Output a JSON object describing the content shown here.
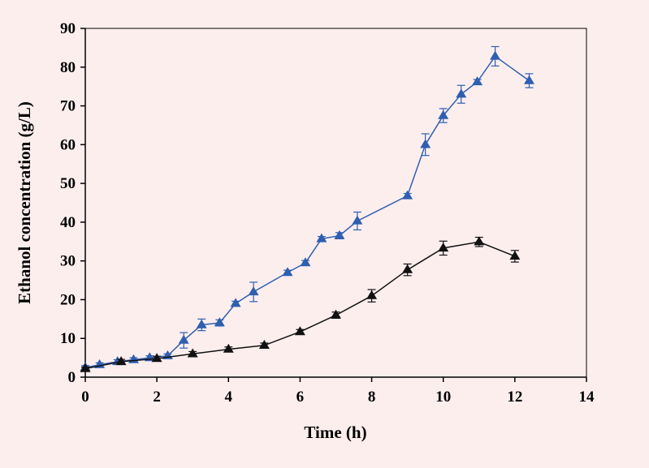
{
  "chart_data": {
    "type": "line",
    "title": "",
    "xlabel": "Time (h)",
    "ylabel": "Ethanol  concentration (g/L)",
    "xlim": [
      0,
      14
    ],
    "ylim": [
      0,
      90
    ],
    "x_ticks": [
      "0",
      "2",
      "4",
      "6",
      "8",
      "10",
      "12",
      "14"
    ],
    "y_ticks": [
      "0",
      "10",
      "20",
      "30",
      "40",
      "50",
      "60",
      "70",
      "80",
      "90"
    ],
    "grid": false,
    "legend": "none",
    "series": [
      {
        "name": "blue",
        "color": "#2e5fb0",
        "marker": "triangle",
        "points": [
          {
            "x": 0,
            "y": 2.5,
            "err": 0.5
          },
          {
            "x": 0.4,
            "y": 3.2,
            "err": 0.5
          },
          {
            "x": 0.9,
            "y": 4.0,
            "err": 0.5
          },
          {
            "x": 1.35,
            "y": 4.5,
            "err": 0.5
          },
          {
            "x": 1.8,
            "y": 5.0,
            "err": 0.5
          },
          {
            "x": 2.3,
            "y": 5.5,
            "err": 0.5
          },
          {
            "x": 2.75,
            "y": 9.5,
            "err": 2.0
          },
          {
            "x": 3.25,
            "y": 13.5,
            "err": 1.5
          },
          {
            "x": 3.75,
            "y": 14.0,
            "err": 0.8
          },
          {
            "x": 4.2,
            "y": 19.0,
            "err": 0.6
          },
          {
            "x": 4.7,
            "y": 22.0,
            "err": 2.5
          },
          {
            "x": 5.65,
            "y": 27.0,
            "err": 0.6
          },
          {
            "x": 6.15,
            "y": 29.5,
            "err": 0.6
          },
          {
            "x": 6.6,
            "y": 35.7,
            "err": 0.6
          },
          {
            "x": 7.1,
            "y": 36.5,
            "err": 0.8
          },
          {
            "x": 7.6,
            "y": 40.3,
            "err": 2.3
          },
          {
            "x": 9.0,
            "y": 46.8,
            "err": 0.6
          },
          {
            "x": 9.5,
            "y": 60.0,
            "err": 2.8
          },
          {
            "x": 10.0,
            "y": 67.5,
            "err": 1.8
          },
          {
            "x": 10.5,
            "y": 73.0,
            "err": 2.3
          },
          {
            "x": 10.95,
            "y": 76.2,
            "err": 0.6
          },
          {
            "x": 11.45,
            "y": 82.8,
            "err": 2.5
          },
          {
            "x": 12.4,
            "y": 76.5,
            "err": 1.8
          }
        ]
      },
      {
        "name": "black",
        "color": "#111111",
        "marker": "triangle",
        "points": [
          {
            "x": 0,
            "y": 2.2,
            "err": 0.4
          },
          {
            "x": 1.0,
            "y": 4.0,
            "err": 0.6
          },
          {
            "x": 2.0,
            "y": 4.8,
            "err": 0.6
          },
          {
            "x": 3.0,
            "y": 6.0,
            "err": 0.6
          },
          {
            "x": 4.0,
            "y": 7.2,
            "err": 0.6
          },
          {
            "x": 5.0,
            "y": 8.2,
            "err": 0.6
          },
          {
            "x": 6.0,
            "y": 11.7,
            "err": 0.6
          },
          {
            "x": 7.0,
            "y": 16.0,
            "err": 0.8
          },
          {
            "x": 8.0,
            "y": 21.0,
            "err": 1.6
          },
          {
            "x": 9.0,
            "y": 27.7,
            "err": 1.5
          },
          {
            "x": 10.0,
            "y": 33.3,
            "err": 1.8
          },
          {
            "x": 11.0,
            "y": 34.9,
            "err": 1.2
          },
          {
            "x": 12.0,
            "y": 31.2,
            "err": 1.5
          }
        ]
      }
    ]
  }
}
